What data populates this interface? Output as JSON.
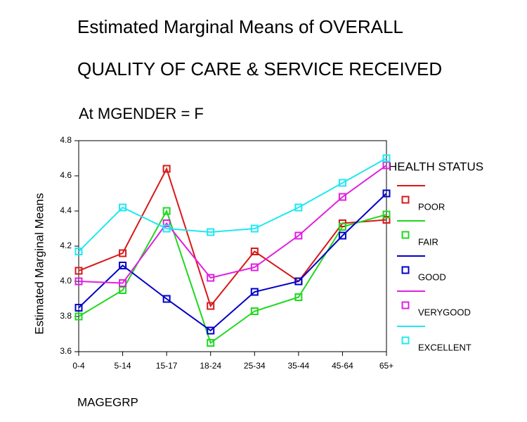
{
  "chart_data": {
    "type": "line",
    "title": [
      "Estimated Marginal Means of OVERALL",
      "QUALITY OF CARE & SERVICE RECEIVED"
    ],
    "subtitle": "At MGENDER = F",
    "x_label": "MAGEGRP",
    "y_label": "Estimated Marginal Means",
    "legend_title": "HEALTH STATUS",
    "legend_position": "right",
    "grid": false,
    "categories": [
      "0-4",
      "5-14",
      "15-17",
      "18-24",
      "25-34",
      "35-44",
      "45-64",
      "65+"
    ],
    "ylim": [
      3.6,
      4.8
    ],
    "yticks": [
      3.6,
      3.8,
      {
        "value": 4,
        "label": "4.0"
      },
      4.2,
      4.4,
      4.6,
      4.8
    ],
    "series": [
      {
        "name": "POOR",
        "color": "#d81818",
        "values": [
          4.06,
          4.16,
          4.64,
          3.86,
          4.17,
          4.0,
          4.33,
          4.35
        ]
      },
      {
        "name": "FAIR",
        "color": "#20d820",
        "values": [
          3.8,
          3.95,
          4.4,
          3.65,
          3.83,
          3.91,
          4.31,
          4.38
        ]
      },
      {
        "name": "GOOD",
        "color": "#0000c8",
        "values": [
          3.85,
          4.09,
          3.9,
          3.72,
          3.94,
          4.0,
          4.26,
          4.5
        ]
      },
      {
        "name": "VERYGOOD",
        "color": "#e020e0",
        "values": [
          4.0,
          3.99,
          4.33,
          4.02,
          4.08,
          4.26,
          4.48,
          4.66
        ]
      },
      {
        "name": "EXCELLENT",
        "color": "#20e8f0",
        "values": [
          4.17,
          4.42,
          4.3,
          4.28,
          4.3,
          4.42,
          4.56,
          4.7
        ]
      }
    ]
  }
}
